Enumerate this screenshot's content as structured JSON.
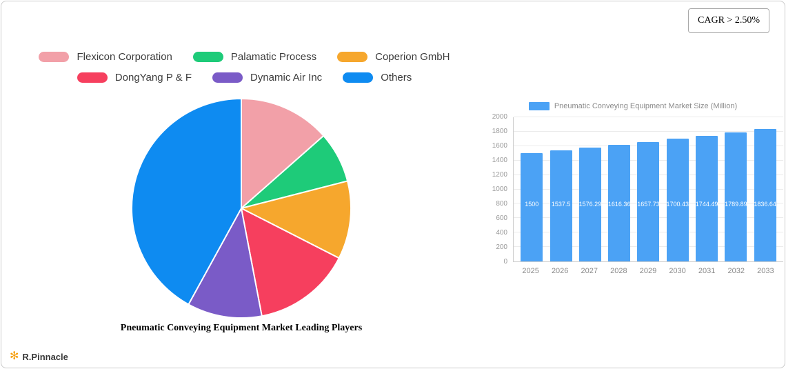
{
  "header": {
    "cagr_label": "CAGR > 2.50%"
  },
  "footer": {
    "brand": "R.Pinnacle",
    "logo_color": "#f59e0b"
  },
  "chart_data": [
    {
      "type": "pie",
      "title": "Pneumatic Conveying Equipment Market Leading Players",
      "labels": [
        "Flexicon Corporation",
        "Palamatic Process",
        "Coperion GmbH",
        "DongYang P & F",
        "Dynamic Air Inc",
        "Others"
      ],
      "values": [
        13.5,
        7.5,
        11.5,
        14.5,
        11,
        42
      ],
      "colors": [
        "#f2a0a8",
        "#1ecb79",
        "#f6a72d",
        "#f63f5e",
        "#7a5bc7",
        "#0e8bf1"
      ],
      "legend_position": "top",
      "start_angle": "12 o'clock, clockwise"
    },
    {
      "type": "bar",
      "title": "Pneumatic Conveying Equipment Market Size (Million)",
      "categories": [
        "2025",
        "2026",
        "2027",
        "2028",
        "2029",
        "2030",
        "2031",
        "2032",
        "2033"
      ],
      "values": [
        1500,
        1537.5,
        1576.29,
        1616.36,
        1657.73,
        1700.43,
        1744.49,
        1789.89,
        1836.64
      ],
      "value_labels": [
        "1500",
        "1537.5",
        "1576.29",
        "1616.36",
        "1657.73",
        "1700.43",
        "1744.49",
        "1789.89",
        "1836.64"
      ],
      "ylim": [
        0,
        2000
      ],
      "yticks": [
        0,
        200,
        400,
        600,
        800,
        1000,
        1200,
        1400,
        1600,
        1800,
        2000
      ],
      "bar_color": "#4ba2f5",
      "grid": true,
      "legend_position": "top"
    }
  ]
}
